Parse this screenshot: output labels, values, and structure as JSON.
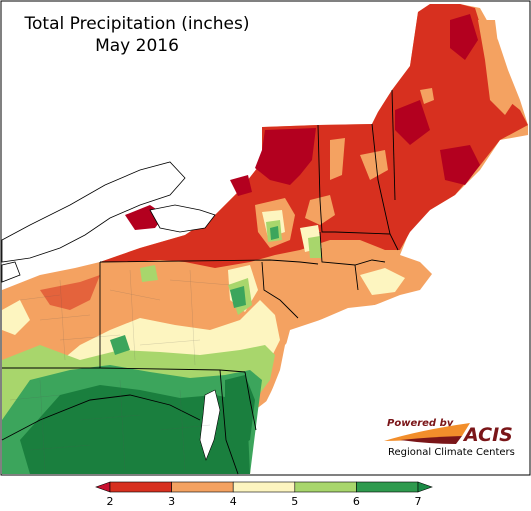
{
  "map": {
    "title_line1": "Total Precipitation (inches)",
    "title_line2": "May 2016"
  },
  "legend": {
    "ticks": [
      "2",
      "3",
      "4",
      "5",
      "6",
      "7"
    ],
    "colors": [
      "#c8102e",
      "#d7301f",
      "#f4a261",
      "#fdf5c0",
      "#a8d66c",
      "#2e9a4e"
    ],
    "below_color": "#c8102e",
    "above_color": "#1a8a45"
  },
  "logo": {
    "powered_by": "Powered by",
    "name": "ACIS",
    "subtitle": "Regional Climate Centers"
  },
  "palette": {
    "red_dark": "#b3001f",
    "red": "#d7301f",
    "orange": "#f4a261",
    "cream": "#fdf5c0",
    "light_green": "#a8d66c",
    "green": "#3ca55c",
    "dark_green": "#1a7f3e",
    "water": "#ffffff",
    "border": "#000000"
  }
}
